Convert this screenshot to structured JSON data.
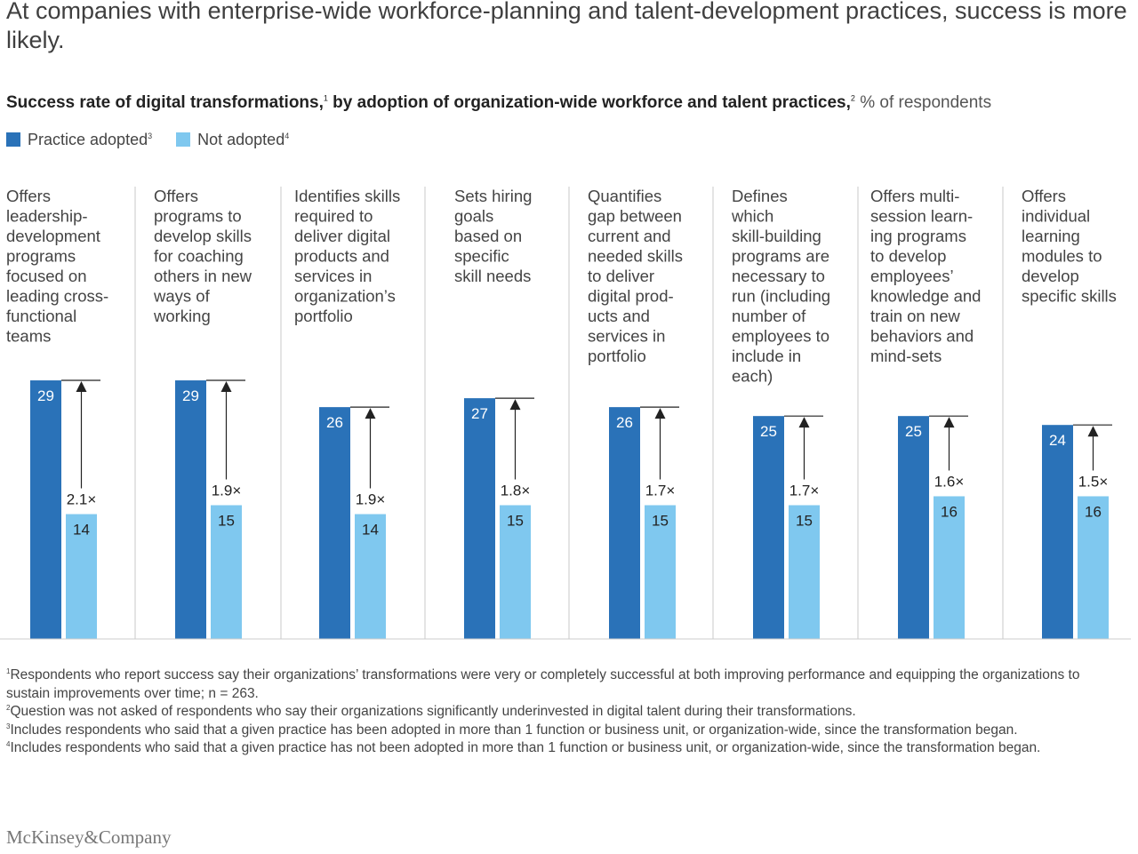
{
  "headline": "At companies with enterprise-wide workforce-planning and talent-development practices, success is more likely.",
  "subtitle": {
    "part1": "Success rate of digital transformations,",
    "sup1": "1",
    "part2": " by adoption of organization-wide workforce and talent practices,",
    "sup2": "2",
    "unit": " % of respondents"
  },
  "legend": [
    {
      "label": "Practice adopted",
      "sup": "3",
      "color": "#2a72b8"
    },
    {
      "label": "Not adopted",
      "sup": "4",
      "color": "#7fc8ef"
    }
  ],
  "chart_data": {
    "type": "bar",
    "categories": [
      "Offers leadership-development programs focused on leading cross-functional teams",
      "Offers programs to develop skills for coaching others in new ways of working",
      "Identifies skills required to deliver digital products and services in organization's portfolio",
      "Sets hiring goals based on specific skill needs",
      "Quantifies gap between current and needed skills to deliver digital products and services in portfolio",
      "Defines which skill-building programs are necessary to run (including number of employees to include in each)",
      "Offers multi-session learning programs to develop employees' knowledge and train on new behaviors and mind-sets",
      "Offers individual learning modules to develop specific skills"
    ],
    "category_label_lines": [
      [
        "Offers",
        "leadership-",
        "development",
        "programs",
        "focused on",
        "leading cross-",
        "functional",
        "teams"
      ],
      [
        "Offers",
        "programs to",
        "develop skills",
        "for coaching",
        "others in new",
        "ways of",
        "working"
      ],
      [
        "Identifies skills",
        "required to",
        "deliver digital",
        "products and",
        "services in",
        "organization’s",
        "portfolio"
      ],
      [
        "Sets hiring",
        "goals",
        "based on",
        "specific",
        "skill needs"
      ],
      [
        "Quantifies",
        "gap between",
        "current and",
        "needed skills",
        "to deliver",
        "digital prod-",
        "ucts and",
        "services in",
        "portfolio"
      ],
      [
        "Defines",
        "which",
        "skill-building",
        "programs are",
        "necessary to",
        "run (including",
        "number of",
        "employees to",
        "include in",
        "each)"
      ],
      [
        "Offers multi-",
        "session learn-",
        "ing programs",
        "to develop",
        "employees’",
        "knowledge and",
        "train on new",
        "behaviors and",
        "mind-sets"
      ],
      [
        "Offers",
        "individual",
        "learning",
        "modules to",
        "develop",
        "specific skills"
      ]
    ],
    "series": [
      {
        "name": "Practice adopted",
        "values": [
          29,
          29,
          26,
          27,
          26,
          25,
          25,
          24
        ],
        "color": "#2a72b8"
      },
      {
        "name": "Not adopted",
        "values": [
          14,
          15,
          14,
          15,
          15,
          15,
          16,
          16
        ],
        "color": "#7fc8ef"
      }
    ],
    "ratios": [
      "2.1×",
      "1.9×",
      "1.9×",
      "1.8×",
      "1.7×",
      "1.7×",
      "1.6×",
      "1.5×"
    ],
    "ylim": [
      0,
      30
    ],
    "title": "Success rate of digital transformations, by adoption of organization-wide workforce and talent practices, % of respondents",
    "xlabel": "",
    "ylabel": "% of respondents"
  },
  "footnotes": [
    {
      "sup": "1",
      "text": "Respondents who report success say their organizations’ transformations were very or completely successful at both improving performance and equipping the organizations to sustain improvements over time; n = 263."
    },
    {
      "sup": "2",
      "text": "Question was not asked of respondents who say their organizations significantly underinvested in digital talent during their transformations."
    },
    {
      "sup": "3",
      "text": "Includes respondents who said that a given practice has been adopted in more than 1 function or business unit, or organization-wide, since the transformation began."
    },
    {
      "sup": "4",
      "text": "Includes respondents who said that a given practice has not been adopted in more than 1 function or business unit, or organization-wide, since the transformation began."
    }
  ],
  "brand": "McKinsey&Company"
}
